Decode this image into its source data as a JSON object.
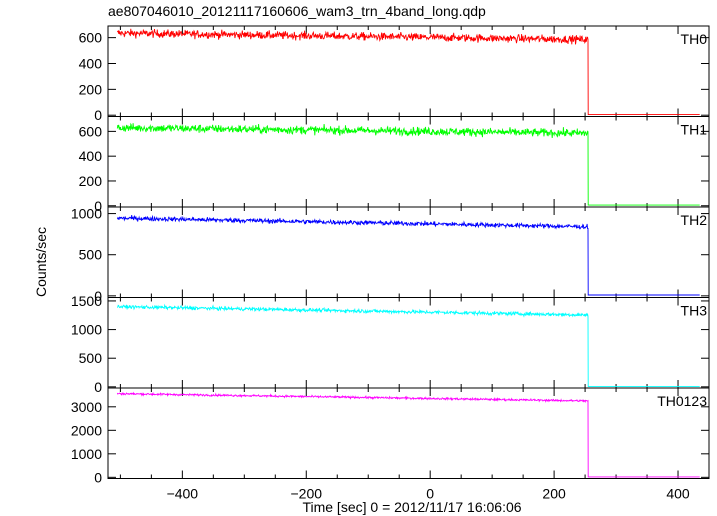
{
  "title": "ae807046010_20121117160606_wam3_trn_4band_long.qdp",
  "xlabel": "Time [sec] 0 = 2012/11/17 16:06:06",
  "ylabel": "Counts/sec",
  "chart_data": {
    "type": "line",
    "title": "ae807046010_20121117160606_wam3_trn_4band_long.qdp",
    "xlabel": "Time [sec] 0 = 2012/11/17 16:06:06",
    "ylabel": "Counts/sec",
    "xlim": [
      -520,
      450
    ],
    "xticks": [
      -400,
      -200,
      0,
      200,
      400
    ],
    "x_data_range": [
      -505,
      440
    ],
    "cutoff_time": 255,
    "panels": [
      {
        "name": "TH0",
        "color": "#ff0000",
        "ylim": [
          -10,
          690
        ],
        "yticks": [
          0,
          200,
          400,
          600
        ],
        "level_start": 635,
        "level_end": 585,
        "noise": 22,
        "after_level": 5
      },
      {
        "name": "TH1",
        "color": "#00ff00",
        "ylim": [
          -10,
          720
        ],
        "yticks": [
          0,
          200,
          400,
          600
        ],
        "level_start": 630,
        "level_end": 585,
        "noise": 24,
        "after_level": 5
      },
      {
        "name": "TH2",
        "color": "#0000ff",
        "ylim": [
          -20,
          1080
        ],
        "yticks": [
          0,
          500,
          1000
        ],
        "level_start": 945,
        "level_end": 840,
        "noise": 20,
        "after_level": 10
      },
      {
        "name": "TH3",
        "color": "#00ffff",
        "ylim": [
          -20,
          1560
        ],
        "yticks": [
          0,
          500,
          1000,
          1500
        ],
        "level_start": 1400,
        "level_end": 1255,
        "noise": 22,
        "after_level": 5
      },
      {
        "name": "TH0123",
        "color": "#ff00ff",
        "ylim": [
          -50,
          3800
        ],
        "yticks": [
          0,
          1000,
          2000,
          3000
        ],
        "level_start": 3560,
        "level_end": 3250,
        "noise": 30,
        "after_level": 20
      }
    ]
  }
}
